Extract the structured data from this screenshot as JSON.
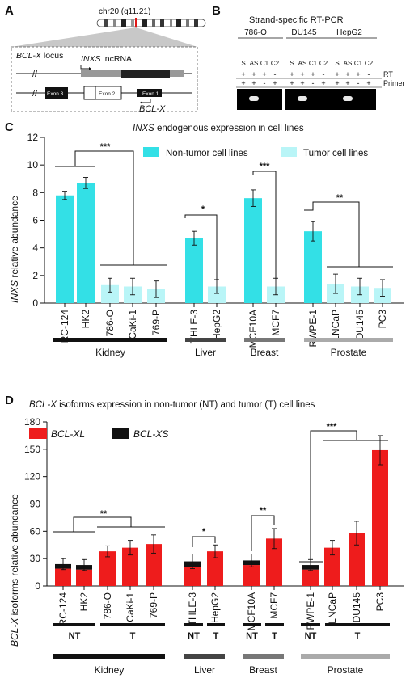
{
  "panel_a": {
    "label": "A",
    "chromosome": "chr20 (q11.21)",
    "locus_prefix": "BCL-X",
    "locus_suffix": " locus",
    "inxs_prefix": "INXS",
    "inxs_suffix": " lncRNA",
    "exon3": "Exon 3",
    "exon2": "Exon 2",
    "exon1": "Exon 1",
    "bclx": "BCL-X"
  },
  "panel_b": {
    "label": "B",
    "title": "Strand-specific RT-PCR",
    "cell_lines": [
      "786-O",
      "DU145",
      "HepG2"
    ],
    "lanes": [
      "S",
      "AS",
      "C1",
      "C2"
    ],
    "rt_row": [
      "+",
      "+",
      "+",
      "-"
    ],
    "primer_row": [
      "+",
      "+",
      "-",
      "+"
    ],
    "rt_label": "RT",
    "primer_label": "Primer"
  },
  "panel_c": {
    "label": "C",
    "title_italic": "INXS",
    "title_rest": " endogenous expression in cell lines",
    "ylabel_italic": "INXS",
    "ylabel_rest": " relative abundance",
    "legend": [
      "Non-tumor cell lines",
      "Tumor cell lines"
    ],
    "colors": {
      "non_tumor": "#33e0e6",
      "tumor": "#b9f5f7"
    },
    "groups": [
      {
        "name": "Kidney",
        "color": "#111111"
      },
      {
        "name": "Liver",
        "color": "#444444"
      },
      {
        "name": "Breast",
        "color": "#777777"
      },
      {
        "name": "Prostate",
        "color": "#aaaaaa"
      }
    ],
    "sig": [
      "***",
      "*",
      "***",
      "**"
    ]
  },
  "panel_d": {
    "label": "D",
    "title_italic": "BCL-X",
    "title_rest": " isoforms expression in non-tumor (NT) and tumor (T) cell lines",
    "ylabel_italic": "BCL-X",
    "ylabel_rest": " isoforms relative abundance",
    "legend": [
      "BCL-XL",
      "BCL-XS"
    ],
    "colors": {
      "xl": "#ee1c1c",
      "xs": "#111111"
    },
    "nt_label": "NT",
    "t_label": "T",
    "groups": [
      "Kidney",
      "Liver",
      "Breast",
      "Prostate"
    ],
    "sig": [
      "**",
      "*",
      "**",
      "***"
    ]
  },
  "chart_data": [
    {
      "type": "bar",
      "categories": [
        "RC-124",
        "HK2",
        "786-O",
        "CaKi-1",
        "769-P",
        "THLE-3",
        "HepG2",
        "MCF10A",
        "MCF7",
        "RWPE-1",
        "LNCaP",
        "DU145",
        "PC3"
      ],
      "values": [
        7.8,
        8.7,
        1.3,
        1.2,
        1.0,
        4.7,
        1.2,
        7.6,
        1.2,
        5.2,
        1.4,
        1.2,
        1.1
      ],
      "errors": [
        0.3,
        0.4,
        0.5,
        0.6,
        0.6,
        0.5,
        0.5,
        0.6,
        0.6,
        0.7,
        0.7,
        0.6,
        0.6
      ],
      "tumor": [
        false,
        false,
        true,
        true,
        true,
        false,
        true,
        false,
        true,
        false,
        true,
        true,
        true
      ],
      "ylim": [
        0,
        12
      ],
      "yticks": [
        0,
        2,
        4,
        6,
        8,
        10,
        12
      ],
      "grid": false,
      "legend_position": "top-right"
    },
    {
      "type": "bar",
      "categories": [
        "RC-124",
        "HK2",
        "786-O",
        "CaKi-1",
        "769-P",
        "THLE-3",
        "HepG2",
        "MCF10A",
        "MCF7",
        "RWPE-1",
        "LNCaP",
        "DU145",
        "PC3"
      ],
      "series": [
        {
          "name": "BCL-XL",
          "values": [
            19,
            18,
            38,
            42,
            46,
            21,
            38,
            23,
            52,
            18,
            42,
            58,
            149
          ]
        },
        {
          "name": "BCL-XS",
          "values": [
            5,
            5,
            0,
            0,
            0,
            6,
            0,
            5,
            0,
            5,
            0,
            0,
            0
          ]
        }
      ],
      "errors": [
        6,
        6,
        6,
        8,
        10,
        8,
        7,
        7,
        11,
        6,
        8,
        13,
        16
      ],
      "nt_t": [
        "NT",
        "NT",
        "T",
        "T",
        "T",
        "NT",
        "T",
        "NT",
        "T",
        "NT",
        "T",
        "T",
        "T"
      ],
      "ylim": [
        0,
        180
      ],
      "yticks": [
        0,
        30,
        60,
        90,
        120,
        150,
        180
      ],
      "grid": false,
      "legend_position": "top-left",
      "stacked": true
    }
  ]
}
